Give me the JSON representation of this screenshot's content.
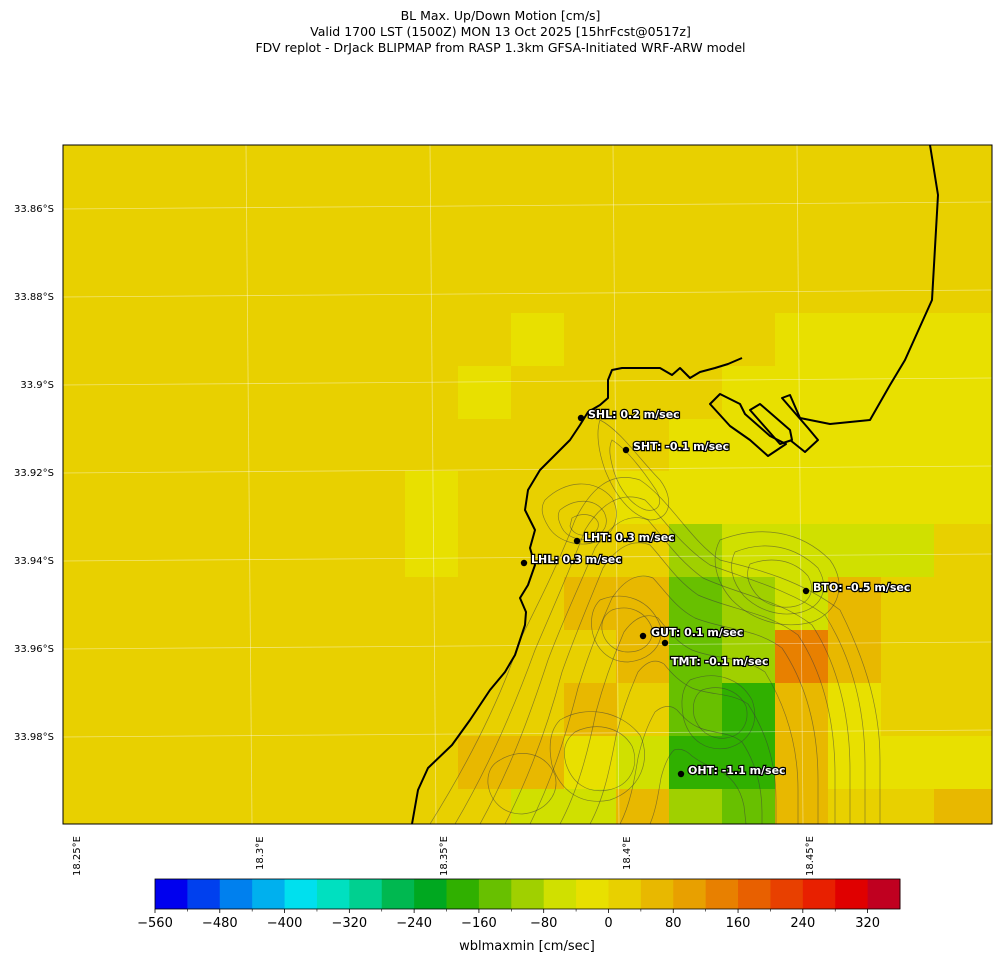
{
  "titles": {
    "line1": "BL Max. Up/Down Motion [cm/s]",
    "line2": "Valid 1700 LST (1500Z) MON 13 Oct 2025 [15hrFcst@0517z]",
    "line3": "FDV replot - DrJack BLIPMAP from RASP 1.3km GFSA-Initiated WRF-ARW model"
  },
  "axes": {
    "lat_labels": [
      "33.86°S",
      "33.88°S",
      "33.9°S",
      "33.92°S",
      "33.94°S",
      "33.96°S",
      "33.98°S"
    ],
    "lon_labels": [
      "18.25°E",
      "18.3°E",
      "18.35°E",
      "18.4°E",
      "18.45°E"
    ]
  },
  "stations": [
    {
      "code": "SHL",
      "label": "SHL: 0.2 m/sec",
      "value": 0.2,
      "unit": "m/sec"
    },
    {
      "code": "SHT",
      "label": "SHT: -0.1 m/sec",
      "value": -0.1,
      "unit": "m/sec"
    },
    {
      "code": "LHT",
      "label": "LHT: 0.3 m/sec",
      "value": 0.3,
      "unit": "m/sec"
    },
    {
      "code": "LHL",
      "label": "LHL: 0.3 m/sec",
      "value": 0.3,
      "unit": "m/sec"
    },
    {
      "code": "BTO",
      "label": "BTO: -0.5 m/sec",
      "value": -0.5,
      "unit": "m/sec"
    },
    {
      "code": "GUT",
      "label": "GUT: 0.1 m/sec",
      "value": 0.1,
      "unit": "m/sec"
    },
    {
      "code": "TMT",
      "label": "TMT: -0.1 m/sec",
      "value": -0.1,
      "unit": "m/sec"
    },
    {
      "code": "OHT",
      "label": "OHT: -1.1 m/sec",
      "value": -1.1,
      "unit": "m/sec"
    }
  ],
  "colorbar": {
    "label": "wblmaxmin [cm/sec]",
    "tick_labels": [
      "−560",
      "−480",
      "−400",
      "−320",
      "−240",
      "−160",
      "−80",
      "0",
      "80",
      "160",
      "240",
      "320"
    ],
    "colors": [
      "#0000ee",
      "#0040ee",
      "#0080ee",
      "#00b0ee",
      "#00e0ee",
      "#00e0c0",
      "#00d090",
      "#00b850",
      "#00a820",
      "#30b000",
      "#68c000",
      "#a0d000",
      "#d0e000",
      "#e8e000",
      "#e8d000",
      "#e8b800",
      "#e8a000",
      "#e88000",
      "#e86000",
      "#e84000",
      "#e82000",
      "#e00000",
      "#c00020"
    ]
  },
  "field_colors": {
    "background": "#e8d000",
    "pale": "#e8e000",
    "yellow_green": "#d0e000",
    "light_green": "#a0d000",
    "green": "#68c000",
    "dark_green": "#30b000",
    "orange": "#e8b800",
    "dark_orange": "#e88000",
    "coast": "#000000"
  }
}
